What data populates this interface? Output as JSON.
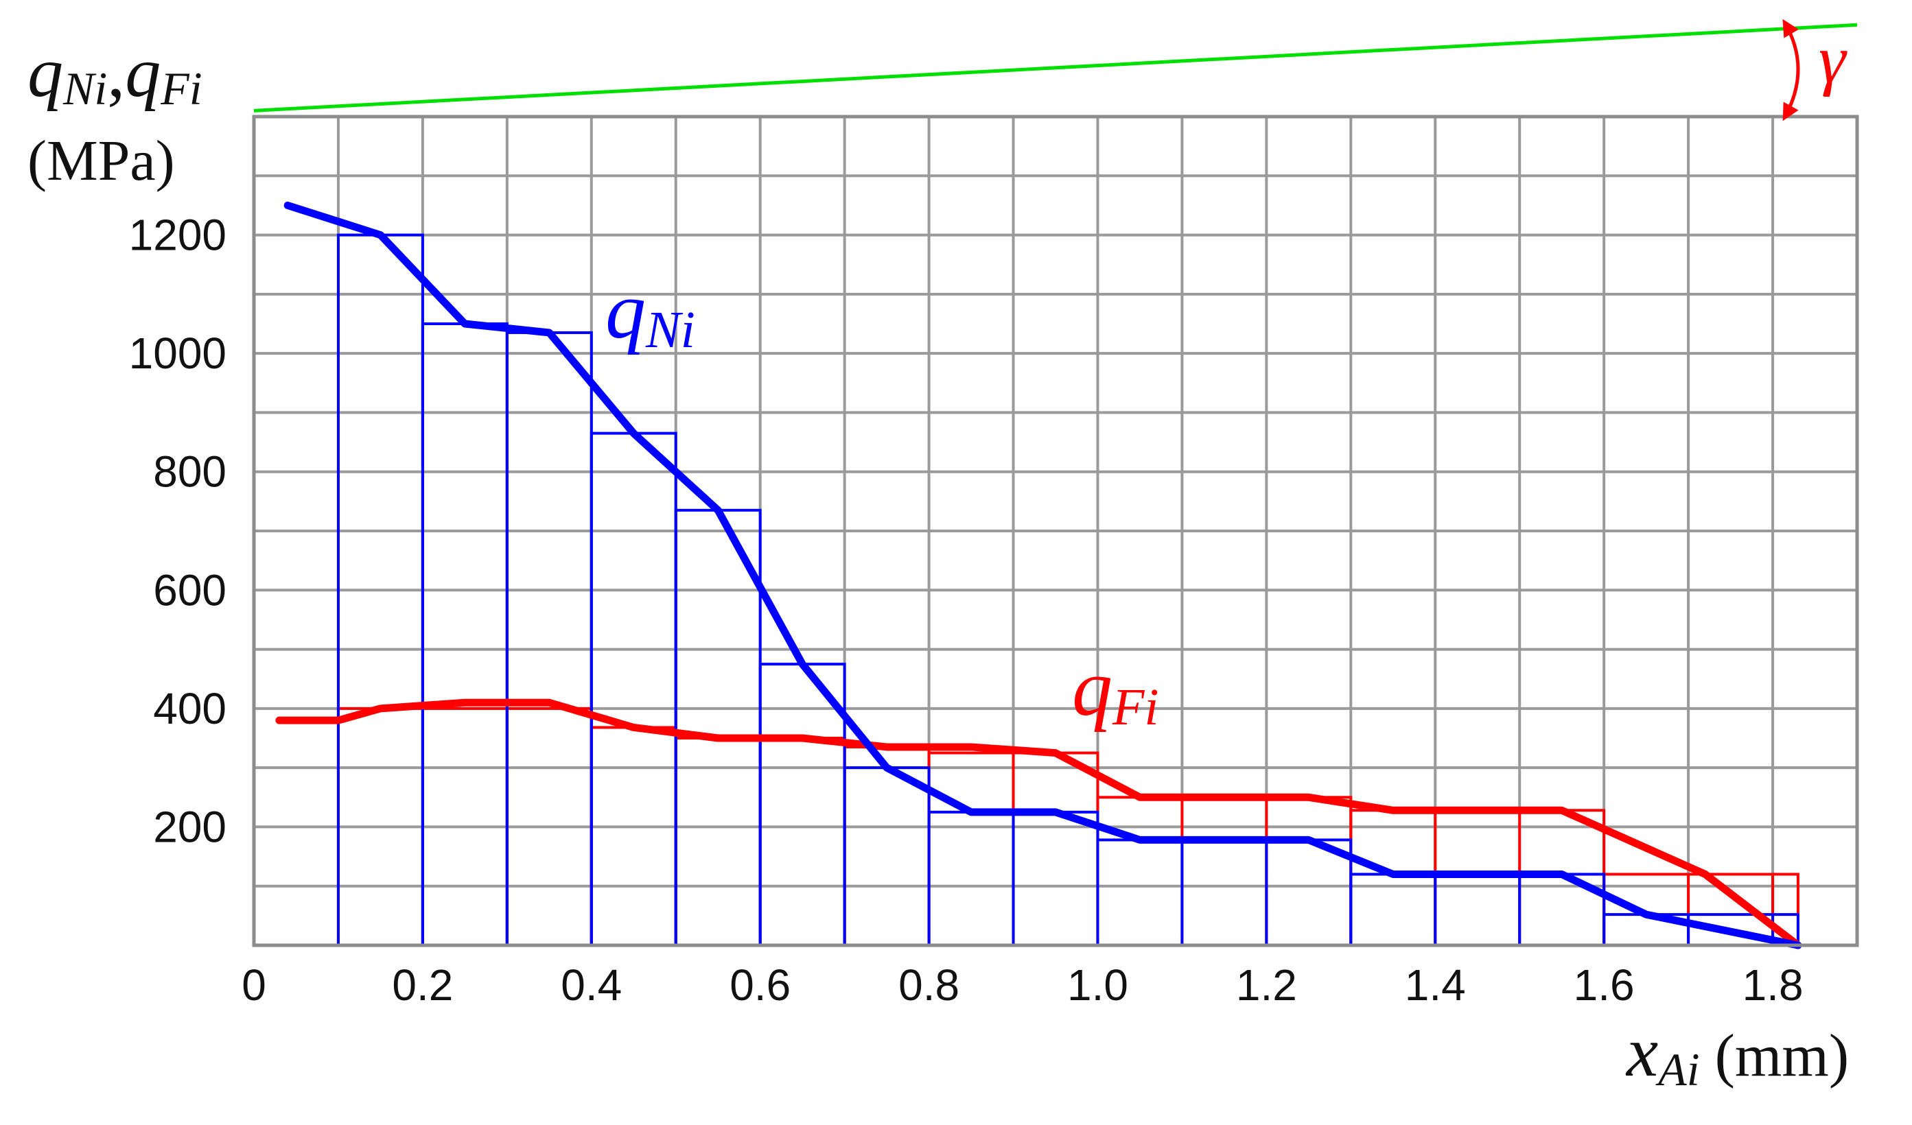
{
  "chart_data": {
    "type": "line",
    "title": "",
    "ylabel": {
      "q1": "q",
      "s1": "Ni",
      "comma": ",",
      "q2": "q",
      "s2": "Fi",
      "unit": "(MPa)"
    },
    "xlabel": {
      "x": "x",
      "sub": "Ai",
      "unit": " (mm)"
    },
    "xlim": [
      0,
      1.9
    ],
    "ylim": [
      0,
      1400
    ],
    "x_ticks": [
      "0",
      "0.2",
      "0.4",
      "0.6",
      "0.8",
      "1.0",
      "1.2",
      "1.4",
      "1.6",
      "1.8"
    ],
    "y_ticks": [
      "200",
      "400",
      "600",
      "800",
      "1000",
      "1200"
    ],
    "grid": true,
    "grid_step_x": 0.1,
    "grid_step_y": 100,
    "series": [
      {
        "name": "qNi",
        "label": {
          "q": "q",
          "sub": "Ni"
        },
        "color": "#0000ff",
        "bins": [
          {
            "x0": 0.1,
            "x1": 0.2,
            "y": 1200
          },
          {
            "x0": 0.2,
            "x1": 0.3,
            "y": 1050
          },
          {
            "x0": 0.3,
            "x1": 0.4,
            "y": 1035
          },
          {
            "x0": 0.4,
            "x1": 0.5,
            "y": 865
          },
          {
            "x0": 0.5,
            "x1": 0.6,
            "y": 735
          },
          {
            "x0": 0.6,
            "x1": 0.7,
            "y": 475
          },
          {
            "x0": 0.7,
            "x1": 0.8,
            "y": 300
          },
          {
            "x0": 0.8,
            "x1": 1.0,
            "y": 225
          },
          {
            "x0": 1.0,
            "x1": 1.3,
            "y": 178
          },
          {
            "x0": 1.3,
            "x1": 1.6,
            "y": 120
          },
          {
            "x0": 1.6,
            "x1": 1.83,
            "y": 52
          }
        ],
        "curve": [
          [
            0.04,
            1250
          ],
          [
            0.15,
            1200
          ],
          [
            0.25,
            1050
          ],
          [
            0.35,
            1035
          ],
          [
            0.45,
            865
          ],
          [
            0.55,
            735
          ],
          [
            0.65,
            475
          ],
          [
            0.75,
            300
          ],
          [
            0.85,
            225
          ],
          [
            0.95,
            225
          ],
          [
            1.05,
            178
          ],
          [
            1.25,
            178
          ],
          [
            1.35,
            120
          ],
          [
            1.55,
            120
          ],
          [
            1.65,
            52
          ],
          [
            1.83,
            0
          ]
        ]
      },
      {
        "name": "qFi",
        "label": {
          "q": "q",
          "sub": "Fi"
        },
        "color": "#ff0000",
        "bins": [
          {
            "x0": 0.1,
            "x1": 0.4,
            "y": 400
          },
          {
            "x0": 0.4,
            "x1": 0.5,
            "y": 368
          },
          {
            "x0": 0.5,
            "x1": 0.7,
            "y": 350
          },
          {
            "x0": 0.7,
            "x1": 0.8,
            "y": 335
          },
          {
            "x0": 0.8,
            "x1": 1.0,
            "y": 325
          },
          {
            "x0": 1.0,
            "x1": 1.3,
            "y": 250
          },
          {
            "x0": 1.3,
            "x1": 1.6,
            "y": 228
          },
          {
            "x0": 1.6,
            "x1": 1.83,
            "y": 120
          }
        ],
        "curve": [
          [
            0.03,
            380
          ],
          [
            0.1,
            380
          ],
          [
            0.15,
            400
          ],
          [
            0.25,
            410
          ],
          [
            0.35,
            410
          ],
          [
            0.45,
            368
          ],
          [
            0.55,
            350
          ],
          [
            0.65,
            350
          ],
          [
            0.75,
            335
          ],
          [
            0.85,
            335
          ],
          [
            0.95,
            325
          ],
          [
            1.05,
            250
          ],
          [
            1.25,
            250
          ],
          [
            1.35,
            228
          ],
          [
            1.55,
            228
          ],
          [
            1.72,
            120
          ],
          [
            1.83,
            0
          ]
        ]
      }
    ],
    "annotation": {
      "label": "γ",
      "reference_line_color": "#00e000",
      "reference_line": [
        [
          0,
          1410
        ],
        [
          1.9,
          1555
        ]
      ]
    }
  }
}
